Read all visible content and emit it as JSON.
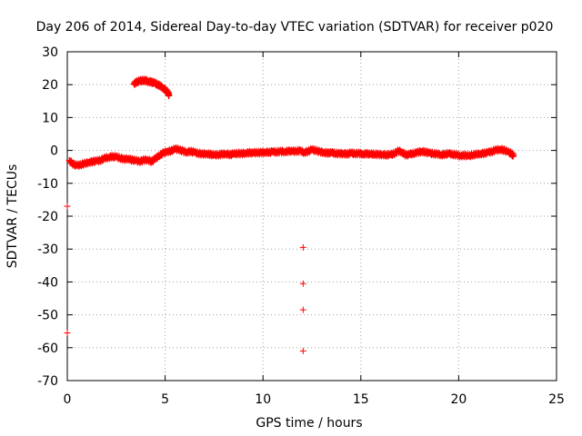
{
  "chart_data": {
    "type": "scatter",
    "title": "Day 206 of 2014, Sidereal Day-to-day VTEC variation (SDTVAR) for receiver p020",
    "xlabel": "GPS time / hours",
    "ylabel": "SDTVAR / TECUs",
    "xlim": [
      0,
      25
    ],
    "ylim": [
      -70,
      30
    ],
    "xticks": [
      0,
      5,
      10,
      15,
      20,
      25
    ],
    "yticks": [
      30,
      20,
      10,
      0,
      -10,
      -20,
      -30,
      -40,
      -50,
      -60,
      -70
    ],
    "grid": true,
    "marker": "+",
    "color": "#ff0000",
    "series": [
      {
        "name": "main band",
        "points": [
          [
            0.1,
            -3.0
          ],
          [
            0.3,
            -4.2
          ],
          [
            0.5,
            -4.6
          ],
          [
            0.7,
            -4.3
          ],
          [
            0.9,
            -4.0
          ],
          [
            1.1,
            -3.6
          ],
          [
            1.3,
            -3.4
          ],
          [
            1.5,
            -3.2
          ],
          [
            1.7,
            -3.0
          ],
          [
            1.9,
            -2.4
          ],
          [
            2.1,
            -2.1
          ],
          [
            2.3,
            -1.9
          ],
          [
            2.5,
            -2.0
          ],
          [
            2.7,
            -2.3
          ],
          [
            2.9,
            -2.7
          ],
          [
            3.1,
            -2.5
          ],
          [
            3.3,
            -2.9
          ],
          [
            3.5,
            -3.1
          ],
          [
            3.7,
            -3.3
          ],
          [
            3.9,
            -3.0
          ],
          [
            4.1,
            -2.8
          ],
          [
            4.3,
            -3.4
          ],
          [
            4.5,
            -2.5
          ],
          [
            4.7,
            -1.6
          ],
          [
            4.9,
            -0.8
          ],
          [
            5.1,
            -0.3
          ],
          [
            5.3,
            -0.2
          ],
          [
            5.5,
            0.4
          ],
          [
            5.7,
            0.3
          ],
          [
            5.9,
            -0.2
          ],
          [
            6.1,
            -0.5
          ],
          [
            6.3,
            -0.3
          ],
          [
            6.5,
            -0.6
          ],
          [
            6.7,
            -0.9
          ],
          [
            6.9,
            -1.1
          ],
          [
            7.1,
            -1.0
          ],
          [
            7.3,
            -1.2
          ],
          [
            7.5,
            -1.4
          ],
          [
            7.7,
            -1.3
          ],
          [
            7.9,
            -1.2
          ],
          [
            8.1,
            -1.0
          ],
          [
            8.3,
            -1.3
          ],
          [
            8.5,
            -1.1
          ],
          [
            8.7,
            -0.9
          ],
          [
            8.9,
            -1.0
          ],
          [
            9.1,
            -0.8
          ],
          [
            9.3,
            -0.7
          ],
          [
            9.5,
            -0.8
          ],
          [
            9.7,
            -0.6
          ],
          [
            9.9,
            -0.7
          ],
          [
            10.1,
            -0.5
          ],
          [
            10.3,
            -0.6
          ],
          [
            10.5,
            -0.4
          ],
          [
            10.7,
            -0.5
          ],
          [
            10.9,
            -0.3
          ],
          [
            11.1,
            -0.4
          ],
          [
            11.3,
            -0.2
          ],
          [
            11.5,
            -0.3
          ],
          [
            11.7,
            -0.2
          ],
          [
            11.9,
            -0.1
          ],
          [
            12.1,
            -0.6
          ],
          [
            12.3,
            -0.3
          ],
          [
            12.5,
            0.2
          ],
          [
            12.7,
            0.0
          ],
          [
            12.9,
            -0.4
          ],
          [
            13.1,
            -0.6
          ],
          [
            13.3,
            -0.8
          ],
          [
            13.5,
            -0.7
          ],
          [
            13.7,
            -0.9
          ],
          [
            13.9,
            -1.0
          ],
          [
            14.1,
            -0.9
          ],
          [
            14.3,
            -1.1
          ],
          [
            14.5,
            -0.8
          ],
          [
            14.7,
            -1.0
          ],
          [
            14.9,
            -0.9
          ],
          [
            15.1,
            -1.1
          ],
          [
            15.3,
            -1.0
          ],
          [
            15.5,
            -1.2
          ],
          [
            15.7,
            -1.1
          ],
          [
            15.9,
            -1.3
          ],
          [
            16.1,
            -1.2
          ],
          [
            16.3,
            -1.4
          ],
          [
            16.5,
            -1.3
          ],
          [
            16.7,
            -1.0
          ],
          [
            16.9,
            -0.2
          ],
          [
            17.1,
            -0.5
          ],
          [
            17.3,
            -1.4
          ],
          [
            17.5,
            -1.2
          ],
          [
            17.7,
            -0.9
          ],
          [
            17.9,
            -0.6
          ],
          [
            18.1,
            -0.3
          ],
          [
            18.3,
            -0.5
          ],
          [
            18.5,
            -0.8
          ],
          [
            18.7,
            -1.0
          ],
          [
            18.9,
            -1.1
          ],
          [
            19.1,
            -1.3
          ],
          [
            19.3,
            -1.2
          ],
          [
            19.5,
            -1.0
          ],
          [
            19.7,
            -1.2
          ],
          [
            19.9,
            -1.4
          ],
          [
            20.1,
            -1.6
          ],
          [
            20.3,
            -1.5
          ],
          [
            20.5,
            -1.7
          ],
          [
            20.7,
            -1.4
          ],
          [
            20.9,
            -1.2
          ],
          [
            21.1,
            -1.0
          ],
          [
            21.3,
            -0.9
          ],
          [
            21.5,
            -0.6
          ],
          [
            21.7,
            -0.3
          ],
          [
            21.9,
            0.1
          ],
          [
            22.1,
            0.3
          ],
          [
            22.3,
            0.1
          ],
          [
            22.5,
            -0.4
          ],
          [
            22.7,
            -1.0
          ],
          [
            22.8,
            -1.6
          ]
        ]
      },
      {
        "name": "arc",
        "points": [
          [
            3.4,
            20.3
          ],
          [
            3.55,
            20.8
          ],
          [
            3.7,
            21.1
          ],
          [
            3.85,
            21.3
          ],
          [
            4.0,
            21.2
          ],
          [
            4.15,
            21.0
          ],
          [
            4.3,
            20.8
          ],
          [
            4.45,
            20.5
          ],
          [
            4.6,
            20.1
          ],
          [
            4.75,
            19.6
          ],
          [
            4.9,
            19.0
          ],
          [
            5.05,
            18.2
          ],
          [
            5.15,
            17.4
          ],
          [
            5.2,
            16.8
          ]
        ]
      },
      {
        "name": "outliers",
        "points": [
          [
            0.0,
            -17.0
          ],
          [
            0.0,
            -55.5
          ],
          [
            12.05,
            -29.5
          ],
          [
            12.05,
            -40.5
          ],
          [
            12.05,
            -48.5
          ],
          [
            12.05,
            -61.0
          ]
        ]
      }
    ]
  }
}
